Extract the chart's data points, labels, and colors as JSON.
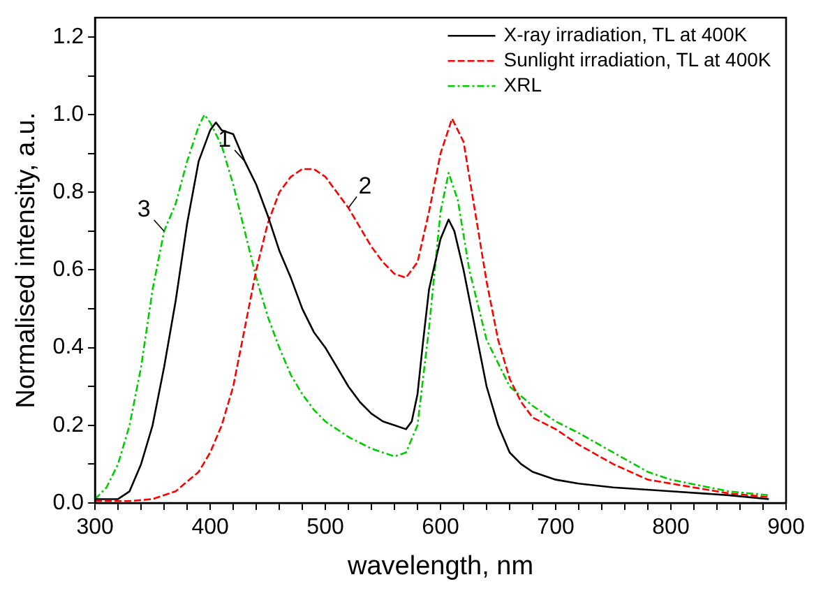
{
  "chart_data": {
    "type": "line",
    "xlabel": "wavelength, nm",
    "ylabel": "Normalised intensity, a.u.",
    "xlim": [
      300,
      900
    ],
    "ylim": [
      0,
      1.25
    ],
    "xticks": [
      300,
      {
        "value": 320,
        "label": null
      },
      {
        "value": 340,
        "label": null
      },
      {
        "value": 360,
        "label": null
      },
      {
        "value": 380,
        "label": null
      },
      400,
      {
        "value": 420,
        "label": null
      },
      {
        "value": 440,
        "label": null
      },
      {
        "value": 460,
        "label": null
      },
      {
        "value": 480,
        "label": null
      },
      500,
      {
        "value": 520,
        "label": null
      },
      {
        "value": 540,
        "label": null
      },
      {
        "value": 560,
        "label": null
      },
      {
        "value": 580,
        "label": null
      },
      600,
      {
        "value": 620,
        "label": null
      },
      {
        "value": 640,
        "label": null
      },
      {
        "value": 660,
        "label": null
      },
      {
        "value": 680,
        "label": null
      },
      700,
      {
        "value": 720,
        "label": null
      },
      {
        "value": 740,
        "label": null
      },
      {
        "value": 760,
        "label": null
      },
      {
        "value": 780,
        "label": null
      },
      800,
      {
        "value": 820,
        "label": null
      },
      {
        "value": 840,
        "label": null
      },
      {
        "value": 860,
        "label": null
      },
      {
        "value": 880,
        "label": null
      },
      900
    ],
    "yticks": [
      {
        "value": 0,
        "label": "0.0"
      },
      {
        "value": 0.1,
        "label": null
      },
      {
        "value": 0.2,
        "label": "0.2"
      },
      {
        "value": 0.3,
        "label": null
      },
      {
        "value": 0.4,
        "label": "0.4"
      },
      {
        "value": 0.5,
        "label": null
      },
      {
        "value": 0.6,
        "label": "0.6"
      },
      {
        "value": 0.7,
        "label": null
      },
      {
        "value": 0.8,
        "label": "0.8"
      },
      {
        "value": 0.9,
        "label": null
      },
      {
        "value": 1.0,
        "label": "1.0"
      },
      {
        "value": 1.1,
        "label": null
      },
      {
        "value": 1.2,
        "label": "1.2"
      }
    ],
    "grid": false,
    "legend": "top right",
    "marker": "none",
    "series": [
      {
        "name": "X-ray irradiation, TL at 400K",
        "color": "#000000",
        "line_style": "solid",
        "x": [
          300,
          320,
          330,
          340,
          350,
          360,
          370,
          380,
          390,
          400,
          405,
          410,
          420,
          430,
          440,
          450,
          460,
          470,
          480,
          490,
          500,
          510,
          520,
          530,
          540,
          550,
          560,
          570,
          575,
          580,
          585,
          590,
          600,
          607,
          612,
          620,
          630,
          640,
          650,
          660,
          670,
          680,
          700,
          720,
          750,
          800,
          850,
          885
        ],
        "values": [
          0.01,
          0.01,
          0.03,
          0.1,
          0.2,
          0.35,
          0.52,
          0.72,
          0.88,
          0.96,
          0.98,
          0.96,
          0.95,
          0.88,
          0.82,
          0.74,
          0.65,
          0.58,
          0.5,
          0.44,
          0.4,
          0.35,
          0.3,
          0.26,
          0.23,
          0.21,
          0.2,
          0.19,
          0.21,
          0.28,
          0.42,
          0.55,
          0.68,
          0.73,
          0.7,
          0.6,
          0.45,
          0.3,
          0.2,
          0.13,
          0.1,
          0.08,
          0.06,
          0.05,
          0.04,
          0.03,
          0.02,
          0.01
        ]
      },
      {
        "name": "Sunlight irradiation, TL at 400K",
        "color": "#ff0000",
        "line_style": "dashed",
        "x": [
          300,
          330,
          350,
          370,
          390,
          400,
          410,
          420,
          430,
          440,
          450,
          460,
          470,
          480,
          490,
          500,
          510,
          520,
          530,
          540,
          550,
          560,
          570,
          580,
          590,
          600,
          610,
          620,
          630,
          640,
          650,
          660,
          670,
          680,
          700,
          720,
          750,
          780,
          800,
          850,
          885
        ],
        "values": [
          0.005,
          0.005,
          0.01,
          0.03,
          0.08,
          0.13,
          0.2,
          0.3,
          0.45,
          0.6,
          0.72,
          0.8,
          0.84,
          0.86,
          0.86,
          0.84,
          0.8,
          0.76,
          0.71,
          0.66,
          0.62,
          0.59,
          0.58,
          0.62,
          0.75,
          0.9,
          0.99,
          0.93,
          0.75,
          0.57,
          0.42,
          0.32,
          0.26,
          0.22,
          0.19,
          0.15,
          0.1,
          0.06,
          0.05,
          0.025,
          0.015
        ]
      },
      {
        "name": "XRL",
        "color": "#00cc00",
        "line_style": "dotted",
        "x": [
          300,
          310,
          320,
          330,
          340,
          350,
          360,
          370,
          380,
          390,
          395,
          400,
          410,
          420,
          430,
          440,
          450,
          460,
          470,
          480,
          490,
          500,
          520,
          540,
          560,
          570,
          580,
          590,
          600,
          607,
          615,
          625,
          640,
          660,
          680,
          700,
          720,
          750,
          780,
          800,
          850,
          885
        ],
        "values": [
          0.01,
          0.04,
          0.1,
          0.2,
          0.35,
          0.55,
          0.7,
          0.77,
          0.88,
          0.97,
          1.0,
          0.98,
          0.92,
          0.82,
          0.7,
          0.58,
          0.48,
          0.4,
          0.33,
          0.28,
          0.24,
          0.21,
          0.17,
          0.14,
          0.12,
          0.13,
          0.2,
          0.45,
          0.75,
          0.85,
          0.78,
          0.6,
          0.42,
          0.3,
          0.25,
          0.21,
          0.18,
          0.13,
          0.08,
          0.06,
          0.03,
          0.02
        ]
      }
    ],
    "annotations": [
      {
        "text": "1",
        "x": 430,
        "y": 0.88
      },
      {
        "text": "2",
        "x": 520,
        "y": 0.76
      },
      {
        "text": "3",
        "x": 360,
        "y": 0.7
      }
    ]
  }
}
